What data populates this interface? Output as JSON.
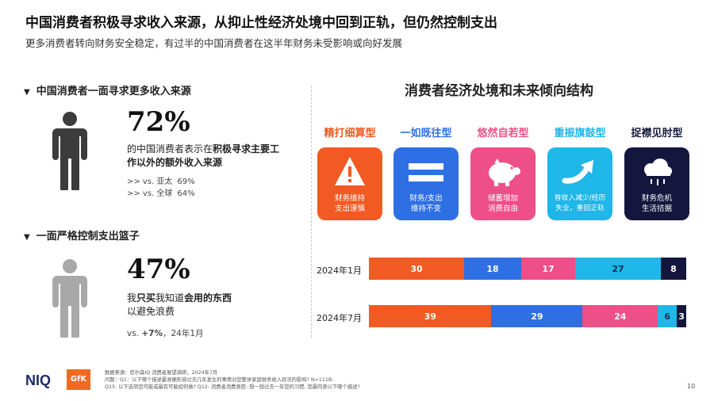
{
  "header": {
    "title": "中国消费者积极寻求收入来源，从抑止性经济处境中回到正轨，但仍然控制支出",
    "subtitle": "更多消费者转向财务安全稳定，有过半的中国消费者在这半年财务未受影响或向好发展"
  },
  "left": {
    "section1": {
      "heading": "中国消费者一面寻求更多收入来源",
      "stat": "72%",
      "desc_pre": "的中国消费者表示在",
      "desc_bold": "积极寻求主要工作以外的额外收入来源",
      "cmp": [
        {
          "label": ">> vs. 亚太",
          "value": "69%"
        },
        {
          "label": ">> vs. 全球",
          "value": "64%"
        }
      ]
    },
    "section2": {
      "heading": "一面严格控制支出篮子",
      "stat": "47%",
      "desc_pre": "我",
      "desc_bold1": "只买",
      "desc_mid": "我知道",
      "desc_bold2": "会用的东西",
      "desc_line2": "以避免浪费",
      "cmp_pre": "vs. ",
      "cmp_bold": "+7%",
      "cmp_post": "，24年1月"
    }
  },
  "right": {
    "title": "消费者经济处境和未来倾向结构",
    "types": [
      {
        "label": "精打细算型",
        "color": "#f15a22",
        "icon": "warning-icon",
        "text1": "财务维持",
        "text2": "支出谨慎"
      },
      {
        "label": "一如既往型",
        "color": "#2f6fe4",
        "icon": "equals-icon",
        "text1": "财务/支出",
        "text2": "维持不变"
      },
      {
        "label": "悠然自若型",
        "color": "#ee4f86",
        "icon": "piggy-bank-icon",
        "text1": "储蓄增加",
        "text2": "消费自由"
      },
      {
        "label": "重振旗鼓型",
        "color": "#1fb6e8",
        "icon": "arrow-up-icon",
        "text1": "曾收入减少/经历",
        "text2": "失业，重回正轨"
      },
      {
        "label": "捉襟见肘型",
        "color": "#14163d",
        "icon": "storm-cloud-icon",
        "text1": "财务危机",
        "text2": "生活拮据"
      }
    ]
  },
  "chart_data": {
    "type": "bar",
    "orientation": "horizontal",
    "stacked": true,
    "categories": [
      "2024年1月",
      "2024年7月"
    ],
    "series": [
      {
        "name": "精打细算型",
        "color": "#f15a22",
        "values": [
          30,
          39
        ]
      },
      {
        "name": "一如既往型",
        "color": "#2f6fe4",
        "values": [
          18,
          29
        ]
      },
      {
        "name": "悠然自若型",
        "color": "#ee4f86",
        "values": [
          17,
          24
        ]
      },
      {
        "name": "重振旗鼓型",
        "color": "#1fb6e8",
        "values": [
          27,
          6
        ]
      },
      {
        "name": "捉襟见肘型",
        "color": "#14163d",
        "values": [
          8,
          3
        ]
      }
    ]
  },
  "footer": {
    "brand1": "NIQ",
    "brand2": "GfK",
    "note1": "数据来源：尼尔森IQ 消费者展望调研，2024年7月",
    "note2": "问题：Q1：以下哪个描述最准确形容过去几年发生的事情对您整体家庭财务收入状况的影响? N=1118;",
    "note3": "Q15: 以下选项您可能或最有可能如何做? Q12: 消费者消费意愿: 想一想过去一年您的习惯, 您最同意以下哪个描述?",
    "page": "10"
  }
}
